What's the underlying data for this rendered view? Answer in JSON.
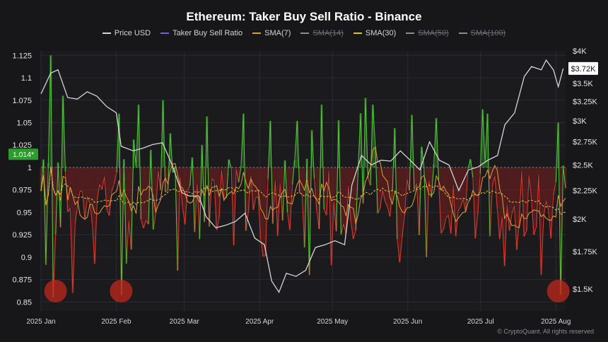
{
  "chart_data": {
    "type": "line",
    "title": "Ethereum: Taker Buy Sell Ratio - Binance",
    "legend": [
      {
        "name": "Price USD",
        "color": "#d4d4d8",
        "enabled": true,
        "dashed": false
      },
      {
        "name": "Taker Buy Sell Ratio",
        "color": "#6d62e8",
        "enabled": true,
        "dashed": false
      },
      {
        "name": "SMA(7)",
        "color": "#e0a030",
        "enabled": true,
        "dashed": false
      },
      {
        "name": "SMA(14)",
        "color": "#8a8a90",
        "enabled": false,
        "dashed": true
      },
      {
        "name": "SMA(30)",
        "color": "#e0c040",
        "enabled": true,
        "dashed": true
      },
      {
        "name": "SMA(50)",
        "color": "#8a8a90",
        "enabled": false,
        "dashed": true
      },
      {
        "name": "SMA(100)",
        "color": "#8a8a90",
        "enabled": false,
        "dashed": true
      }
    ],
    "x_ticks": [
      "2025 Jan",
      "2025 Feb",
      "2025 Mar",
      "2025 Apr",
      "2025 May",
      "2025 Jun",
      "2025 Jul",
      "2025 Aug"
    ],
    "y_left_ticks": [
      "1.125",
      "1.1",
      "1.075",
      "1.05",
      "1.025",
      "1",
      "0.975",
      "0.95",
      "0.925",
      "0.9",
      "0.875",
      "0.85"
    ],
    "y_left_range": [
      0.84,
      1.13
    ],
    "y_right_ticks": [
      "$4K",
      "$3.5K",
      "$3.25K",
      "$3K",
      "$2.75K",
      "$2.5K",
      "$2.25K",
      "$2K",
      "$1.75K",
      "$1.5K"
    ],
    "y_right_scale": "log",
    "ratio_baseline": 1,
    "ratio_badge": "1.014*",
    "price_badge": "$3.72K",
    "ratio_days": 216,
    "price_points": [
      [
        "2025-01-01",
        3350
      ],
      [
        "2025-01-05",
        3650
      ],
      [
        "2025-01-08",
        3700
      ],
      [
        "2025-01-12",
        3300
      ],
      [
        "2025-01-16",
        3280
      ],
      [
        "2025-01-20",
        3380
      ],
      [
        "2025-01-24",
        3320
      ],
      [
        "2025-01-28",
        3180
      ],
      [
        "2025-02-01",
        3100
      ],
      [
        "2025-02-03",
        2700
      ],
      [
        "2025-02-08",
        2650
      ],
      [
        "2025-02-12",
        2680
      ],
      [
        "2025-02-16",
        2720
      ],
      [
        "2025-02-20",
        2740
      ],
      [
        "2025-02-24",
        2500
      ],
      [
        "2025-02-28",
        2230
      ],
      [
        "2025-03-03",
        2200
      ],
      [
        "2025-03-07",
        2200
      ],
      [
        "2025-03-10",
        2020
      ],
      [
        "2025-03-14",
        1930
      ],
      [
        "2025-03-18",
        1950
      ],
      [
        "2025-03-22",
        1980
      ],
      [
        "2025-03-26",
        2050
      ],
      [
        "2025-03-30",
        1850
      ],
      [
        "2025-04-03",
        1800
      ],
      [
        "2025-04-06",
        1550
      ],
      [
        "2025-04-09",
        1480
      ],
      [
        "2025-04-12",
        1600
      ],
      [
        "2025-04-16",
        1580
      ],
      [
        "2025-04-20",
        1620
      ],
      [
        "2025-04-24",
        1780
      ],
      [
        "2025-04-28",
        1800
      ],
      [
        "2025-05-02",
        1830
      ],
      [
        "2025-05-06",
        1800
      ],
      [
        "2025-05-09",
        2300
      ],
      [
        "2025-05-13",
        2600
      ],
      [
        "2025-05-17",
        2500
      ],
      [
        "2025-05-21",
        2550
      ],
      [
        "2025-05-25",
        2540
      ],
      [
        "2025-05-29",
        2650
      ],
      [
        "2025-06-02",
        2550
      ],
      [
        "2025-06-06",
        2450
      ],
      [
        "2025-06-10",
        2750
      ],
      [
        "2025-06-14",
        2550
      ],
      [
        "2025-06-18",
        2500
      ],
      [
        "2025-06-22",
        2250
      ],
      [
        "2025-06-26",
        2450
      ],
      [
        "2025-06-30",
        2480
      ],
      [
        "2025-07-04",
        2550
      ],
      [
        "2025-07-08",
        2600
      ],
      [
        "2025-07-11",
        2950
      ],
      [
        "2025-07-15",
        3100
      ],
      [
        "2025-07-19",
        3600
      ],
      [
        "2025-07-22",
        3750
      ],
      [
        "2025-07-26",
        3700
      ],
      [
        "2025-07-28",
        3850
      ],
      [
        "2025-07-31",
        3700
      ],
      [
        "2025-08-02",
        3450
      ],
      [
        "2025-08-04",
        3720
      ]
    ],
    "highlighted_lows": [
      "2025-01-07",
      "2025-02-03",
      "2025-08-02"
    ]
  },
  "watermark": "© CryptoQuant. All rights reserved"
}
